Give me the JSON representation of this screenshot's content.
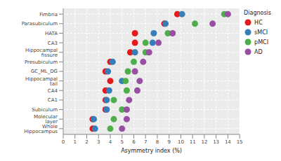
{
  "chart_data": {
    "type": "scatter",
    "x_label": "Asymmetry index (%)",
    "legend_title": "Diagnosis",
    "categories": [
      "Fimbria",
      "Parasubiculum",
      "HATA",
      "CA3",
      "Hippocampal fissure",
      "Presubiculum",
      "GC_ML_DG",
      "Hippocampal tail",
      "CA4",
      "CA1",
      "Subiculum",
      "Molecular layer",
      "Whole Hippocampus"
    ],
    "orientation": "horizontal",
    "series": [
      {
        "name": "HC",
        "color": "#e41a1c",
        "values": [
          9.7,
          8.6,
          6.1,
          6.1,
          5.7,
          4.0,
          3.6,
          4.0,
          3.6,
          3.6,
          3.6,
          2.5,
          2.5
        ]
      },
      {
        "name": "sMCI",
        "color": "#377eb8",
        "values": [
          10.1,
          8.7,
          7.7,
          7.6,
          6.1,
          4.2,
          3.8,
          5.0,
          3.9,
          3.7,
          3.7,
          2.6,
          2.7
        ]
      },
      {
        "name": "pMCI",
        "color": "#4daf4a",
        "values": [
          13.7,
          11.2,
          8.9,
          7.0,
          7.0,
          6.0,
          5.5,
          5.3,
          5.4,
          4.3,
          5.0,
          4.3,
          4.0
        ]
      },
      {
        "name": "AD",
        "color": "#984ea3",
        "values": [
          14.0,
          12.7,
          9.3,
          8.1,
          7.3,
          6.8,
          6.1,
          6.5,
          6.3,
          5.6,
          5.4,
          5.4,
          5.0
        ]
      }
    ],
    "xlim": [
      0,
      15
    ],
    "xticks": [
      0,
      1,
      2,
      3,
      4,
      5,
      6,
      7,
      8,
      9,
      10,
      11,
      12,
      13,
      14,
      15
    ],
    "marker": "circle",
    "grid": true,
    "legend": "right"
  }
}
